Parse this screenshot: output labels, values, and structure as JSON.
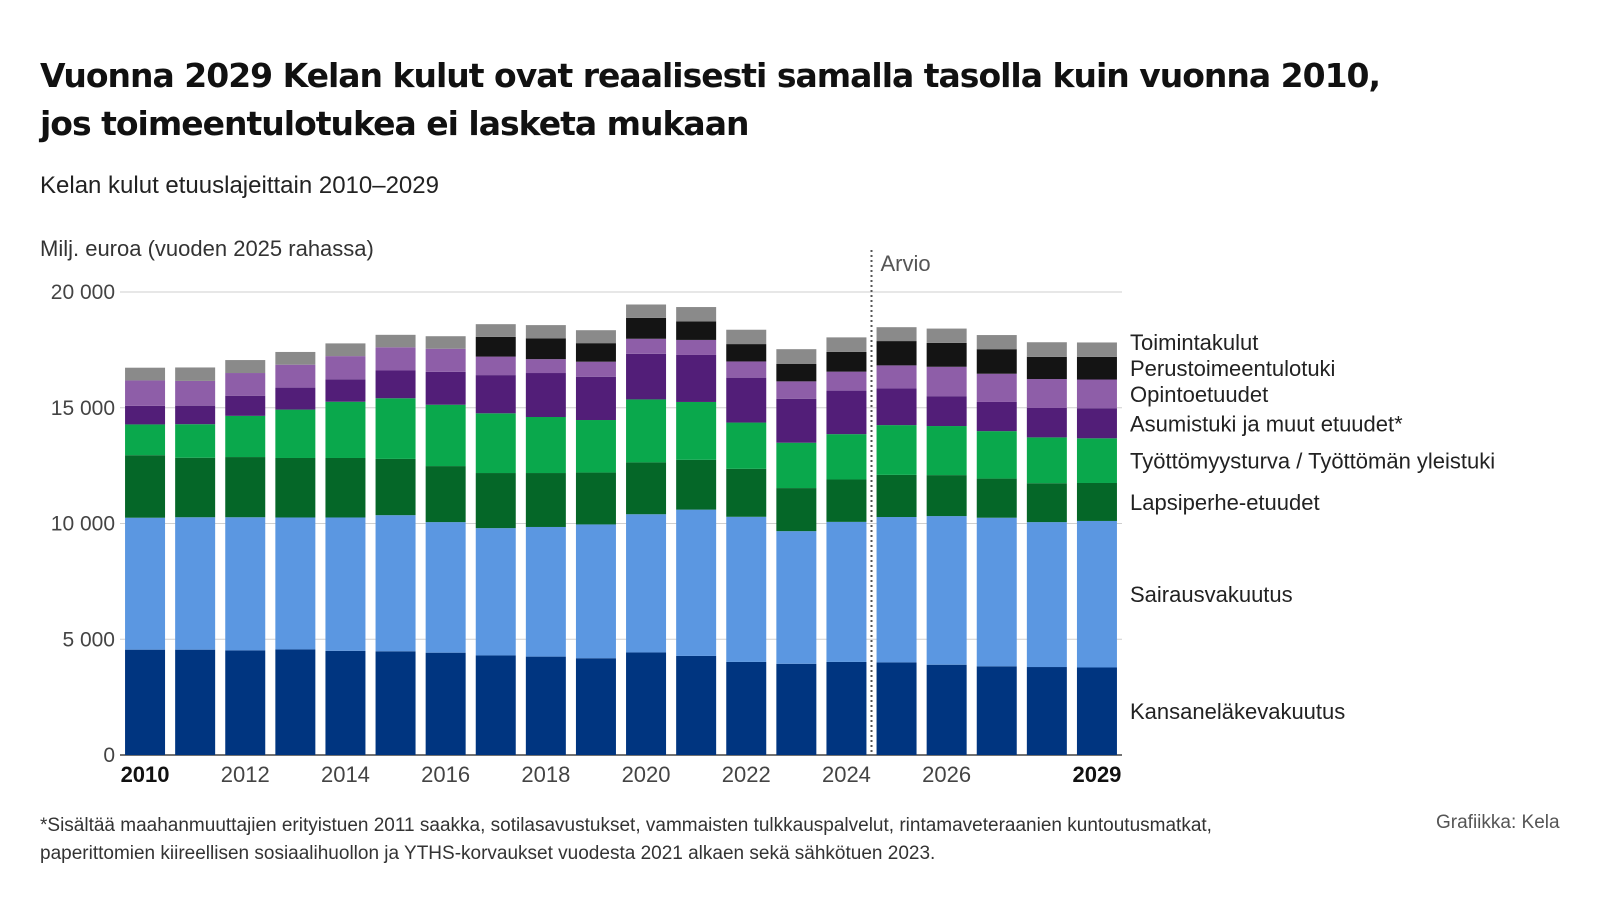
{
  "title_line1": "Vuonna 2029 Kelan kulut ovat reaalisesti samalla tasolla kuin vuonna 2010,",
  "title_line2": "jos toimeentulotukea ei lasketa mukaan",
  "subtitle": "Kelan kulut etuuslajeittain 2010–2029",
  "y_axis_label": "Milj. euroa (vuoden 2025 rahassa)",
  "forecast_label": "Arvio",
  "footnote_line1": "*Sisältää maahanmuuttajien erityistuen 2011 saakka, sotilasavustukset, vammaisten tulkkauspalvelut, rintamaveteraanien kuntoutusmatkat,",
  "footnote_line2": "paperittomien kiireellisen sosiaalihuollon ja YTHS-korvaukset vuodesta 2021 alkaen sekä sähkötuen 2023.",
  "credit": "Grafiikka: Kela",
  "chart_data": {
    "type": "bar",
    "stacked": true,
    "categories": [
      "2010",
      "2011",
      "2012",
      "2013",
      "2014",
      "2015",
      "2016",
      "2017",
      "2018",
      "2019",
      "2020",
      "2021",
      "2022",
      "2023",
      "2024",
      "2025",
      "2026",
      "2027",
      "2028",
      "2029"
    ],
    "x_tick_labels": [
      "2010",
      "",
      "2012",
      "",
      "2014",
      "",
      "2016",
      "",
      "2018",
      "",
      "2020",
      "",
      "2022",
      "",
      "2024",
      "",
      "2026",
      "",
      "",
      "2029"
    ],
    "bold_ticks": [
      "2010",
      "2029"
    ],
    "ylim": [
      0,
      20000
    ],
    "y_ticks": [
      0,
      5000,
      10000,
      15000,
      20000
    ],
    "y_tick_labels": [
      "0",
      "5 000",
      "10 000",
      "15 000",
      "20 000"
    ],
    "grid": true,
    "forecast_start": "2025",
    "legend_placement": "right",
    "series": [
      {
        "name": "Kansaneläkevakuutus",
        "color": "#003580",
        "values": [
          4550,
          4550,
          4520,
          4560,
          4500,
          4480,
          4420,
          4300,
          4250,
          4180,
          4430,
          4280,
          4020,
          3940,
          4020,
          4000,
          3900,
          3830,
          3800,
          3780
        ]
      },
      {
        "name": "Sairausvakuutus",
        "color": "#5b97e1",
        "values": [
          5700,
          5720,
          5750,
          5700,
          5760,
          5880,
          5640,
          5500,
          5600,
          5780,
          5970,
          6320,
          6270,
          5730,
          6050,
          6280,
          6420,
          6420,
          6260,
          6330
        ]
      },
      {
        "name": "Lapsiperhe-etuudet",
        "color": "#056728",
        "values": [
          2700,
          2570,
          2600,
          2570,
          2570,
          2430,
          2420,
          2380,
          2330,
          2240,
          2240,
          2150,
          2070,
          1860,
          1830,
          1820,
          1770,
          1690,
          1680,
          1640
        ]
      },
      {
        "name": "Työttömyysturva / Työttömän yleistuki",
        "color": "#0aa84c",
        "values": [
          1330,
          1450,
          1780,
          2090,
          2430,
          2620,
          2650,
          2580,
          2420,
          2270,
          2720,
          2500,
          2000,
          1960,
          1960,
          2150,
          2120,
          2050,
          1980,
          1930
        ]
      },
      {
        "name": "Asumistuki ja muut etuudet*",
        "color": "#521e78",
        "values": [
          800,
          800,
          870,
          950,
          970,
          1200,
          1420,
          1650,
          1900,
          1870,
          1970,
          2030,
          1940,
          1900,
          1880,
          1580,
          1290,
          1260,
          1270,
          1300
        ]
      },
      {
        "name": "Opintoetuudet",
        "color": "#8e5ea8",
        "values": [
          1100,
          1070,
          980,
          990,
          1000,
          1000,
          1000,
          800,
          600,
          650,
          650,
          650,
          700,
          750,
          820,
          1000,
          1270,
          1220,
          1250,
          1240
        ]
      },
      {
        "name": "Perustoimeentulotuki",
        "color": "#141414",
        "values": [
          0,
          0,
          0,
          0,
          0,
          0,
          0,
          850,
          900,
          800,
          900,
          800,
          750,
          750,
          850,
          1050,
          1030,
          1060,
          960,
          980
        ]
      },
      {
        "name": "Toimintakulut",
        "color": "#8a8a8a",
        "values": [
          550,
          580,
          560,
          550,
          550,
          540,
          540,
          550,
          570,
          560,
          580,
          620,
          620,
          640,
          630,
          600,
          620,
          610,
          630,
          620
        ]
      }
    ]
  }
}
